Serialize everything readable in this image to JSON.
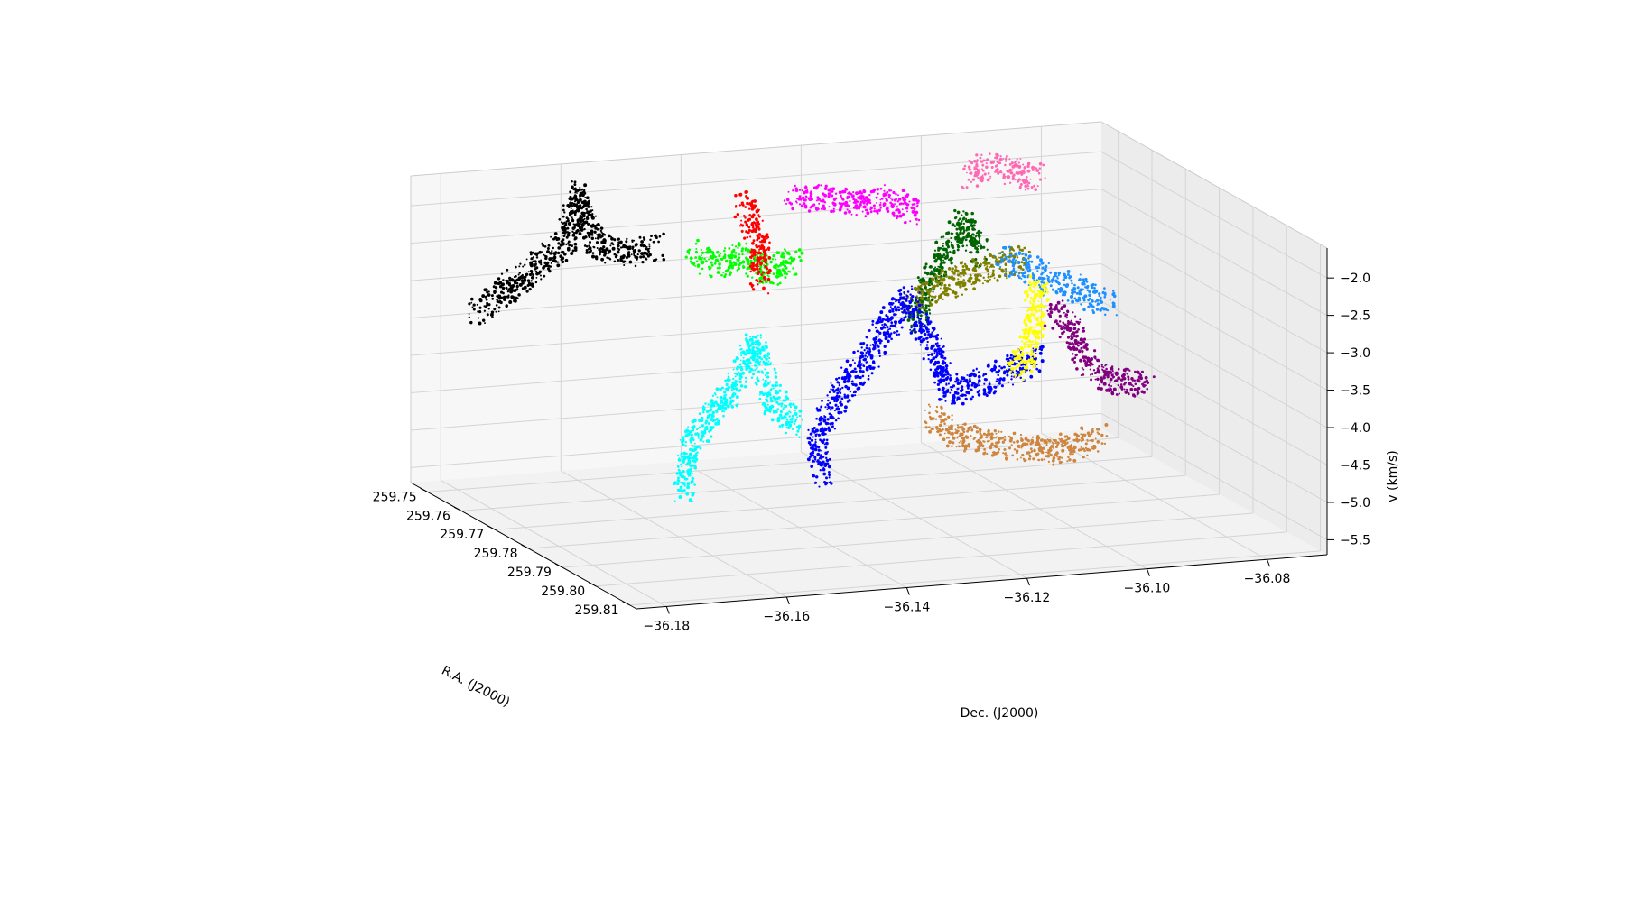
{
  "chart_data": {
    "type": "scatter",
    "projection": "3d",
    "grid": true,
    "legend": "none",
    "xlabel": "Dec. (J2000)",
    "ylabel": "R.A. (J2000)",
    "zlabel": "v (km/s)",
    "x_ticks": [
      "−36.18",
      "−36.16",
      "−36.14",
      "−36.12",
      "−36.10",
      "−36.08"
    ],
    "x_tick_values": [
      -36.18,
      -36.16,
      -36.14,
      -36.12,
      -36.1,
      -36.08
    ],
    "y_ticks": [
      "259.75",
      "259.76",
      "259.77",
      "259.78",
      "259.79",
      "259.80",
      "259.81"
    ],
    "y_tick_values": [
      259.75,
      259.76,
      259.77,
      259.78,
      259.79,
      259.8,
      259.81
    ],
    "z_ticks": [
      "−2.0",
      "−2.5",
      "−3.0",
      "−3.5",
      "−4.0",
      "−4.5",
      "−5.0",
      "−5.5"
    ],
    "z_tick_values": [
      -2.0,
      -2.5,
      -3.0,
      -3.5,
      -4.0,
      -4.5,
      -5.0,
      -5.5
    ],
    "xlim": [
      -36.185,
      -36.07
    ],
    "ylim": [
      259.745,
      259.812
    ],
    "zlim": [
      -5.7,
      -1.6
    ],
    "series": [
      {
        "color": "#000000",
        "path": [
          [
            -36.178,
            259.752,
            -3.35
          ],
          [
            -36.172,
            259.752,
            -2.95
          ],
          [
            -36.168,
            259.752,
            -2.75
          ],
          [
            -36.163,
            259.752,
            -2.45
          ],
          [
            -36.161,
            259.752,
            -1.8
          ],
          [
            -36.158,
            259.752,
            -2.55
          ],
          [
            -36.153,
            259.752,
            -2.65
          ],
          [
            -36.148,
            259.752,
            -2.6
          ]
        ]
      },
      {
        "color": "#00ff00",
        "path": [
          [
            -36.149,
            259.765,
            -2.35
          ],
          [
            -36.145,
            259.765,
            -2.55
          ],
          [
            -36.141,
            259.765,
            -2.45
          ],
          [
            -36.136,
            259.765,
            -2.7
          ],
          [
            -36.132,
            259.765,
            -2.5
          ]
        ]
      },
      {
        "color": "#ff0000",
        "path": [
          [
            -36.141,
            259.765,
            -1.75
          ],
          [
            -36.139,
            259.765,
            -2.05
          ],
          [
            -36.138,
            259.765,
            -2.4
          ],
          [
            -36.138,
            259.765,
            -2.8
          ]
        ]
      },
      {
        "color": "#ff00ff",
        "path": [
          [
            -36.128,
            259.757,
            -1.95
          ],
          [
            -36.122,
            259.757,
            -2.0
          ],
          [
            -36.116,
            259.757,
            -2.1
          ],
          [
            -36.112,
            259.757,
            -2.05
          ],
          [
            -36.108,
            259.757,
            -2.3
          ]
        ]
      },
      {
        "color": "#ff69b4",
        "path": [
          [
            -36.097,
            259.753,
            -1.95
          ],
          [
            -36.093,
            259.753,
            -1.85
          ],
          [
            -36.089,
            259.753,
            -1.95
          ],
          [
            -36.085,
            259.753,
            -2.05
          ]
        ]
      },
      {
        "color": "#006400",
        "path": [
          [
            -36.112,
            259.765,
            -3.55
          ],
          [
            -36.11,
            259.765,
            -3.0
          ],
          [
            -36.107,
            259.765,
            -2.6
          ],
          [
            -36.104,
            259.765,
            -2.2
          ],
          [
            -36.101,
            259.765,
            -2.7
          ]
        ]
      },
      {
        "color": "#808000",
        "path": [
          [
            -36.112,
            259.763,
            -3.3
          ],
          [
            -36.106,
            259.763,
            -3.1
          ],
          [
            -36.101,
            259.763,
            -2.95
          ],
          [
            -36.097,
            259.763,
            -2.9
          ],
          [
            -36.093,
            259.763,
            -2.8
          ]
        ]
      },
      {
        "color": "#00ffff",
        "path": [
          [
            -36.157,
            259.776,
            -5.25
          ],
          [
            -36.156,
            259.776,
            -4.6
          ],
          [
            -36.152,
            259.776,
            -4.2
          ],
          [
            -36.148,
            259.776,
            -3.8
          ],
          [
            -36.145,
            259.776,
            -3.3
          ],
          [
            -36.142,
            259.776,
            -4.1
          ],
          [
            -36.138,
            259.776,
            -4.45
          ]
        ]
      },
      {
        "color": "#0000ff",
        "path": [
          [
            -36.135,
            259.778,
            -5.1
          ],
          [
            -36.136,
            259.778,
            -4.55
          ],
          [
            -36.131,
            259.778,
            -3.9
          ],
          [
            -36.126,
            259.778,
            -3.4
          ],
          [
            -36.121,
            259.778,
            -2.8
          ],
          [
            -36.117,
            259.778,
            -3.4
          ],
          [
            -36.114,
            259.778,
            -4.1
          ],
          [
            -36.108,
            259.778,
            -4.0
          ],
          [
            -36.103,
            259.778,
            -3.85
          ],
          [
            -36.099,
            259.778,
            -3.75
          ]
        ]
      },
      {
        "color": "#cd853f",
        "path": [
          [
            -36.118,
            259.78,
            -4.35
          ],
          [
            -36.114,
            259.78,
            -4.6
          ],
          [
            -36.109,
            259.78,
            -4.75
          ],
          [
            -36.104,
            259.78,
            -4.85
          ],
          [
            -36.099,
            259.78,
            -4.95
          ],
          [
            -36.094,
            259.78,
            -4.9
          ],
          [
            -36.09,
            259.78,
            -4.8
          ]
        ]
      },
      {
        "color": "#1e90ff",
        "path": [
          [
            -36.096,
            259.762,
            -2.85
          ],
          [
            -36.092,
            259.762,
            -3.0
          ],
          [
            -36.088,
            259.762,
            -3.2
          ],
          [
            -36.083,
            259.762,
            -3.35
          ],
          [
            -36.078,
            259.762,
            -3.55
          ]
        ]
      },
      {
        "color": "#ffff00",
        "path": [
          [
            -36.097,
            259.768,
            -4.2
          ],
          [
            -36.095,
            259.768,
            -3.9
          ],
          [
            -36.094,
            259.768,
            -3.6
          ],
          [
            -36.094,
            259.768,
            -3.3
          ],
          [
            -36.093,
            259.768,
            -3.05
          ]
        ]
      },
      {
        "color": "#800080",
        "path": [
          [
            -36.091,
            259.768,
            -3.45
          ],
          [
            -36.087,
            259.768,
            -3.75
          ],
          [
            -36.086,
            259.768,
            -4.1
          ],
          [
            -36.083,
            259.768,
            -4.35
          ],
          [
            -36.079,
            259.768,
            -4.45
          ],
          [
            -36.075,
            259.768,
            -4.5
          ]
        ]
      }
    ]
  }
}
